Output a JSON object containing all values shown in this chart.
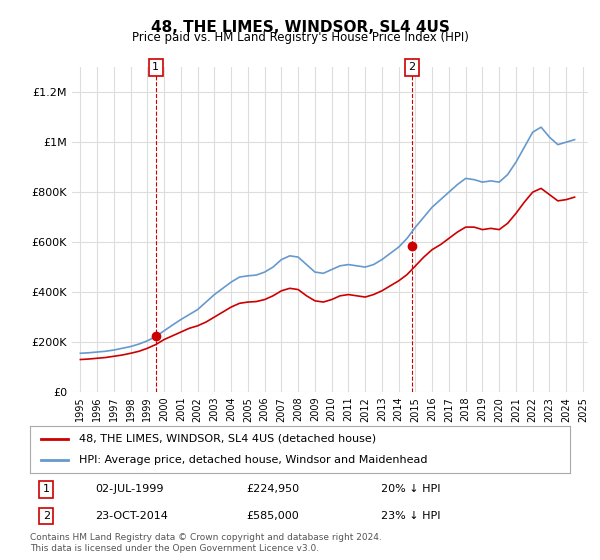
{
  "title": "48, THE LIMES, WINDSOR, SL4 4US",
  "subtitle": "Price paid vs. HM Land Registry's House Price Index (HPI)",
  "legend_entry1": "48, THE LIMES, WINDSOR, SL4 4US (detached house)",
  "legend_entry2": "HPI: Average price, detached house, Windsor and Maidenhead",
  "annotation1_label": "1",
  "annotation1_date": "02-JUL-1999",
  "annotation1_price": "£224,950",
  "annotation1_hpi": "20% ↓ HPI",
  "annotation2_label": "2",
  "annotation2_date": "23-OCT-2014",
  "annotation2_price": "£585,000",
  "annotation2_hpi": "23% ↓ HPI",
  "footer": "Contains HM Land Registry data © Crown copyright and database right 2024.\nThis data is licensed under the Open Government Licence v3.0.",
  "price_color": "#cc0000",
  "hpi_color": "#6699cc",
  "annotation_color": "#cc0000",
  "background_color": "#ffffff",
  "grid_color": "#dddddd",
  "ylim": [
    0,
    1300000
  ],
  "yticks": [
    0,
    200000,
    400000,
    600000,
    800000,
    1000000,
    1200000
  ],
  "ytick_labels": [
    "£0",
    "£200K",
    "£400K",
    "£600K",
    "£800K",
    "£1M",
    "£1.2M"
  ],
  "sale1_x": 1999.5,
  "sale1_y": 224950,
  "sale2_x": 2014.8,
  "sale2_y": 585000,
  "hpi_years": [
    1995,
    1995.5,
    1996,
    1996.5,
    1997,
    1997.5,
    1998,
    1998.5,
    1999,
    1999.5,
    2000,
    2000.5,
    2001,
    2001.5,
    2002,
    2002.5,
    2003,
    2003.5,
    2004,
    2004.5,
    2005,
    2005.5,
    2006,
    2006.5,
    2007,
    2007.5,
    2008,
    2008.5,
    2009,
    2009.5,
    2010,
    2010.5,
    2011,
    2011.5,
    2012,
    2012.5,
    2013,
    2013.5,
    2014,
    2014.5,
    2015,
    2015.5,
    2016,
    2016.5,
    2017,
    2017.5,
    2018,
    2018.5,
    2019,
    2019.5,
    2020,
    2020.5,
    2021,
    2021.5,
    2022,
    2022.5,
    2023,
    2023.5,
    2024,
    2024.5
  ],
  "hpi_values": [
    155000,
    157000,
    160000,
    163000,
    168000,
    175000,
    182000,
    192000,
    205000,
    222000,
    245000,
    268000,
    290000,
    310000,
    330000,
    360000,
    390000,
    415000,
    440000,
    460000,
    465000,
    468000,
    480000,
    500000,
    530000,
    545000,
    540000,
    510000,
    480000,
    475000,
    490000,
    505000,
    510000,
    505000,
    500000,
    510000,
    530000,
    555000,
    580000,
    615000,
    660000,
    700000,
    740000,
    770000,
    800000,
    830000,
    855000,
    850000,
    840000,
    845000,
    840000,
    870000,
    920000,
    980000,
    1040000,
    1060000,
    1020000,
    990000,
    1000000,
    1010000
  ],
  "price_years": [
    1995,
    1995.5,
    1996,
    1996.5,
    1997,
    1997.5,
    1998,
    1998.5,
    1999,
    1999.5,
    2000,
    2000.5,
    2001,
    2001.5,
    2002,
    2002.5,
    2003,
    2003.5,
    2004,
    2004.5,
    2005,
    2005.5,
    2006,
    2006.5,
    2007,
    2007.5,
    2008,
    2008.5,
    2009,
    2009.5,
    2010,
    2010.5,
    2011,
    2011.5,
    2012,
    2012.5,
    2013,
    2013.5,
    2014,
    2014.5,
    2015,
    2015.5,
    2016,
    2016.5,
    2017,
    2017.5,
    2018,
    2018.5,
    2019,
    2019.5,
    2020,
    2020.5,
    2021,
    2021.5,
    2022,
    2022.5,
    2023,
    2023.5,
    2024,
    2024.5
  ],
  "price_values": [
    130000,
    132000,
    135000,
    138000,
    143000,
    148000,
    155000,
    163000,
    175000,
    190000,
    210000,
    225000,
    240000,
    255000,
    265000,
    280000,
    300000,
    320000,
    340000,
    355000,
    360000,
    362000,
    370000,
    385000,
    405000,
    415000,
    410000,
    385000,
    365000,
    360000,
    370000,
    385000,
    390000,
    385000,
    380000,
    390000,
    405000,
    425000,
    445000,
    470000,
    505000,
    540000,
    570000,
    590000,
    615000,
    640000,
    660000,
    660000,
    650000,
    655000,
    650000,
    675000,
    715000,
    760000,
    800000,
    815000,
    790000,
    765000,
    770000,
    780000
  ],
  "xtick_years": [
    1995,
    1996,
    1997,
    1998,
    1999,
    2000,
    2001,
    2002,
    2003,
    2004,
    2005,
    2006,
    2007,
    2008,
    2009,
    2010,
    2011,
    2012,
    2013,
    2014,
    2015,
    2016,
    2017,
    2018,
    2019,
    2020,
    2021,
    2022,
    2023,
    2024,
    2025
  ]
}
